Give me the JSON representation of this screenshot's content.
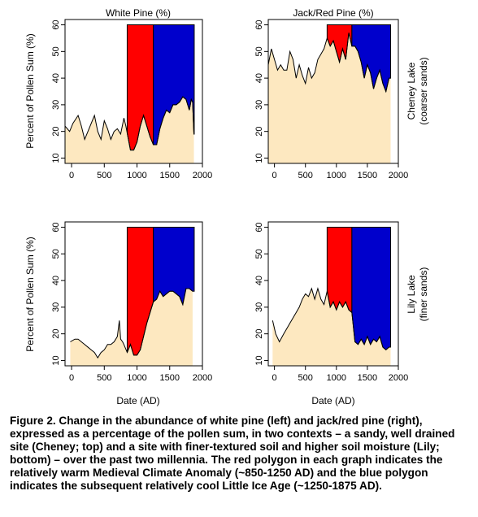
{
  "figure": {
    "caption": "Figure 2. Change in the abundance of white pine (left) and jack/red pine (right), expressed as a percentage of the pollen sum, in two contexts – a sandy, well drained site (Cheney; top) and a site with finer-textured soil and higher soil moisture (Lily; bottom) – over the past two millennia. The red polygon in each graph indicates the relatively warm Medieval Climate Anomaly (~850-1250 AD) and the blue polygon indicates the subsequent relatively cool Little Ice Age (~1250-1875 AD).",
    "col_titles": [
      "White Pine (%)",
      "Jack/Red Pine (%)"
    ],
    "row_labels": [
      [
        "Cheney Lake",
        "(coarser sands)"
      ],
      [
        "Lily Lake",
        "(finer sands)"
      ]
    ],
    "ylabel": "Percent of Pollen Sum (%)",
    "xlabel": "Date (AD)"
  },
  "colors": {
    "fill": "#fde8c0",
    "mca": "#ff0000",
    "lia": "#0000cc"
  },
  "chart_data": [
    {
      "type": "area",
      "title": "White Pine (%)",
      "row": "Cheney Lake",
      "xlim": [
        -100,
        2000
      ],
      "ylim": [
        8,
        62
      ],
      "xticks": [
        0,
        500,
        1000,
        1500,
        2000
      ],
      "yticks": [
        10,
        20,
        30,
        40,
        50,
        60
      ],
      "mca": [
        850,
        1250
      ],
      "lia": [
        1250,
        1875
      ],
      "x": [
        -100,
        -30,
        20,
        100,
        150,
        200,
        250,
        300,
        350,
        400,
        450,
        500,
        550,
        600,
        650,
        700,
        750,
        800,
        830,
        900,
        950,
        1000,
        1050,
        1100,
        1150,
        1200,
        1250,
        1300,
        1350,
        1400,
        1450,
        1500,
        1550,
        1600,
        1650,
        1700,
        1750,
        1800,
        1830,
        1850,
        1870
      ],
      "y": [
        22,
        20,
        23,
        26,
        22,
        17,
        20,
        23,
        26,
        20,
        17,
        24,
        21,
        17,
        20,
        21,
        19,
        25,
        22,
        13,
        13,
        16,
        22,
        26,
        22,
        18,
        15,
        15,
        21,
        25,
        28,
        27,
        30,
        30,
        31,
        33,
        32,
        28,
        32,
        31,
        19
      ]
    },
    {
      "type": "area",
      "title": "Jack/Red Pine (%)",
      "row": "Cheney Lake",
      "xlim": [
        -100,
        2000
      ],
      "ylim": [
        8,
        62
      ],
      "xticks": [
        0,
        500,
        1000,
        1500,
        2000
      ],
      "yticks": [
        10,
        20,
        30,
        40,
        50,
        60
      ],
      "mca": [
        850,
        1250
      ],
      "lia": [
        1250,
        1875
      ],
      "x": [
        -100,
        -50,
        0,
        50,
        100,
        150,
        200,
        250,
        300,
        350,
        400,
        450,
        500,
        550,
        600,
        650,
        700,
        750,
        800,
        850,
        900,
        950,
        1000,
        1050,
        1100,
        1150,
        1200,
        1250,
        1300,
        1350,
        1400,
        1450,
        1500,
        1550,
        1600,
        1650,
        1700,
        1750,
        1800,
        1850,
        1875
      ],
      "y": [
        45,
        51,
        47,
        43,
        45,
        43,
        43,
        50,
        47,
        40,
        45,
        41,
        38,
        44,
        40,
        42,
        47,
        49,
        51,
        55,
        52,
        54,
        50,
        46,
        51,
        47,
        57,
        52,
        52,
        50,
        46,
        40,
        45,
        42,
        36,
        40,
        43,
        38,
        35,
        40,
        40
      ]
    },
    {
      "type": "area",
      "title": "White Pine (%)",
      "row": "Lily Lake",
      "xlim": [
        -100,
        2000
      ],
      "ylim": [
        8,
        62
      ],
      "xticks": [
        0,
        500,
        1000,
        1500,
        2000
      ],
      "yticks": [
        10,
        20,
        30,
        40,
        50,
        60
      ],
      "mca": [
        850,
        1250
      ],
      "lia": [
        1250,
        1875
      ],
      "x": [
        -20,
        50,
        100,
        150,
        200,
        250,
        300,
        350,
        400,
        450,
        500,
        550,
        600,
        650,
        700,
        730,
        750,
        780,
        800,
        850,
        900,
        950,
        1000,
        1050,
        1100,
        1150,
        1200,
        1250,
        1300,
        1350,
        1400,
        1450,
        1500,
        1550,
        1600,
        1650,
        1700,
        1750,
        1800,
        1850
      ],
      "y": [
        17,
        18,
        18,
        17,
        16,
        15,
        14,
        13,
        11,
        13,
        14,
        16,
        16,
        17,
        19,
        25,
        18,
        17,
        16,
        13,
        16,
        12,
        12,
        14,
        19,
        24,
        28,
        32,
        33,
        36,
        34,
        35,
        36,
        36,
        35,
        34,
        31,
        37,
        37,
        36
      ]
    },
    {
      "type": "area",
      "title": "Jack/Red Pine (%)",
      "row": "Lily Lake",
      "xlim": [
        -100,
        2000
      ],
      "ylim": [
        8,
        62
      ],
      "xticks": [
        0,
        500,
        1000,
        1500,
        2000
      ],
      "yticks": [
        10,
        20,
        30,
        40,
        50,
        60
      ],
      "mca": [
        850,
        1250
      ],
      "lia": [
        1250,
        1875
      ],
      "x": [
        -30,
        20,
        80,
        150,
        200,
        250,
        300,
        350,
        400,
        450,
        500,
        550,
        600,
        650,
        700,
        750,
        800,
        850,
        900,
        950,
        1000,
        1050,
        1100,
        1150,
        1200,
        1250,
        1300,
        1350,
        1400,
        1450,
        1500,
        1550,
        1600,
        1650,
        1700,
        1750,
        1800,
        1850,
        1875
      ],
      "y": [
        25,
        20,
        17,
        20,
        22,
        24,
        26,
        28,
        30,
        33,
        35,
        34,
        37,
        33,
        37,
        33,
        31,
        36,
        30,
        32,
        29,
        32,
        30,
        32,
        29,
        28,
        17,
        16,
        18,
        16,
        19,
        16,
        18,
        17,
        19,
        15,
        14,
        15,
        15
      ]
    }
  ]
}
